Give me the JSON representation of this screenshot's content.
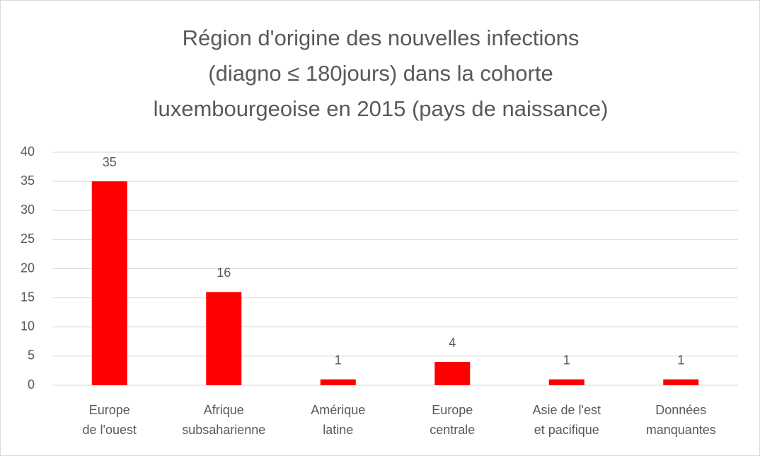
{
  "chart_data": {
    "type": "bar",
    "title": "Région d'origine des nouvelles infections (diagno ≤ 180jours) dans la cohorte luxembourgeoise en 2015 (pays de naissance)",
    "categories": [
      "Europe de l'ouest",
      "Afrique subsaharienne",
      "Amérique latine",
      "Europe centrale",
      "Asie de l'est et pacifique",
      "Données manquantes"
    ],
    "values": [
      35,
      16,
      1,
      4,
      1,
      1
    ],
    "color": "#ff0000",
    "ylim": [
      0,
      40
    ],
    "yticks": [
      0,
      5,
      10,
      15,
      20,
      25,
      30,
      35,
      40
    ],
    "grid": true
  }
}
